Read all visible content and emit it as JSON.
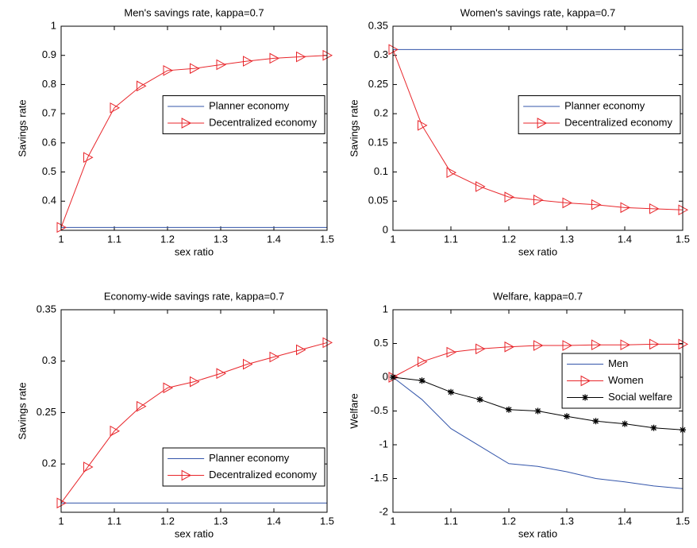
{
  "chart_data": [
    {
      "type": "line",
      "title": "Men's savings rate, kappa=0.7",
      "xlabel": "sex ratio",
      "ylabel": "Savings rate",
      "x": [
        1,
        1.05,
        1.1,
        1.15,
        1.2,
        1.25,
        1.3,
        1.35,
        1.4,
        1.45,
        1.5
      ],
      "xlim": [
        1,
        1.5
      ],
      "xticks": [
        1,
        1.1,
        1.2,
        1.3,
        1.4,
        1.5
      ],
      "ylim": [
        0.3,
        1
      ],
      "yticks": [
        0.4,
        0.5,
        0.6,
        0.7,
        0.8,
        0.9,
        1
      ],
      "legend_loc": "east",
      "series": [
        {
          "name": "Planner economy",
          "color": "#3355aa",
          "marker": "none",
          "values": [
            0.31,
            0.31,
            0.31,
            0.31,
            0.31,
            0.31,
            0.31,
            0.31,
            0.31,
            0.31,
            0.31
          ]
        },
        {
          "name": "Decentralized economy",
          "color": "#e8262b",
          "marker": ">",
          "values": [
            0.31,
            0.55,
            0.72,
            0.795,
            0.848,
            0.855,
            0.868,
            0.88,
            0.89,
            0.895,
            0.9
          ]
        }
      ]
    },
    {
      "type": "line",
      "title": "Women's savings rate, kappa=0.7",
      "xlabel": "sex ratio",
      "ylabel": "Savings rate",
      "x": [
        1,
        1.05,
        1.1,
        1.15,
        1.2,
        1.25,
        1.3,
        1.35,
        1.4,
        1.45,
        1.5
      ],
      "xlim": [
        1,
        1.5
      ],
      "xticks": [
        1,
        1.1,
        1.2,
        1.3,
        1.4,
        1.5
      ],
      "ylim": [
        0,
        0.35
      ],
      "yticks": [
        0,
        0.05,
        0.1,
        0.15,
        0.2,
        0.25,
        0.3,
        0.35
      ],
      "legend_loc": "east",
      "series": [
        {
          "name": "Planner economy",
          "color": "#3355aa",
          "marker": "none",
          "values": [
            0.31,
            0.31,
            0.31,
            0.31,
            0.31,
            0.31,
            0.31,
            0.31,
            0.31,
            0.31,
            0.31
          ]
        },
        {
          "name": "Decentralized economy",
          "color": "#e8262b",
          "marker": ">",
          "values": [
            0.31,
            0.18,
            0.099,
            0.075,
            0.057,
            0.052,
            0.047,
            0.044,
            0.039,
            0.037,
            0.035
          ]
        }
      ]
    },
    {
      "type": "line",
      "title": "Economy-wide savings rate, kappa=0.7",
      "xlabel": "sex ratio",
      "ylabel": "Savings rate",
      "x": [
        1,
        1.05,
        1.1,
        1.15,
        1.2,
        1.25,
        1.3,
        1.35,
        1.4,
        1.45,
        1.5
      ],
      "xlim": [
        1,
        1.5
      ],
      "xticks": [
        1,
        1.1,
        1.2,
        1.3,
        1.4,
        1.5
      ],
      "ylim": [
        0.153,
        0.35
      ],
      "yticks": [
        0.2,
        0.25,
        0.3,
        0.35
      ],
      "legend_loc": "southeast",
      "series": [
        {
          "name": "Planner economy",
          "color": "#3355aa",
          "marker": "none",
          "values": [
            0.162,
            0.162,
            0.162,
            0.162,
            0.162,
            0.162,
            0.162,
            0.162,
            0.162,
            0.162,
            0.162
          ]
        },
        {
          "name": "Decentralized economy",
          "color": "#e8262b",
          "marker": ">",
          "values": [
            0.162,
            0.197,
            0.232,
            0.256,
            0.274,
            0.28,
            0.288,
            0.297,
            0.304,
            0.311,
            0.318
          ]
        }
      ]
    },
    {
      "type": "line",
      "title": "Welfare, kappa=0.7",
      "xlabel": "sex ratio",
      "ylabel": "Welfare",
      "x": [
        1,
        1.05,
        1.1,
        1.15,
        1.2,
        1.25,
        1.3,
        1.35,
        1.4,
        1.45,
        1.5
      ],
      "xlim": [
        1,
        1.5
      ],
      "xticks": [
        1,
        1.1,
        1.2,
        1.3,
        1.4,
        1.5
      ],
      "ylim": [
        -2,
        1
      ],
      "yticks": [
        -2,
        -1.5,
        -1,
        -0.5,
        0,
        0.5,
        1
      ],
      "legend_loc": "northeast",
      "series": [
        {
          "name": "Men",
          "color": "#3355aa",
          "marker": "none",
          "values": [
            0,
            -0.33,
            -0.76,
            -1.02,
            -1.28,
            -1.32,
            -1.4,
            -1.5,
            -1.55,
            -1.61,
            -1.65
          ]
        },
        {
          "name": "Women",
          "color": "#e8262b",
          "marker": ">",
          "values": [
            0,
            0.23,
            0.37,
            0.42,
            0.45,
            0.47,
            0.47,
            0.48,
            0.48,
            0.49,
            0.49
          ]
        },
        {
          "name": "Social welfare",
          "color": "#000000",
          "marker": "*",
          "values": [
            0,
            -0.05,
            -0.22,
            -0.33,
            -0.48,
            -0.5,
            -0.58,
            -0.65,
            -0.69,
            -0.75,
            -0.78
          ]
        }
      ]
    }
  ]
}
